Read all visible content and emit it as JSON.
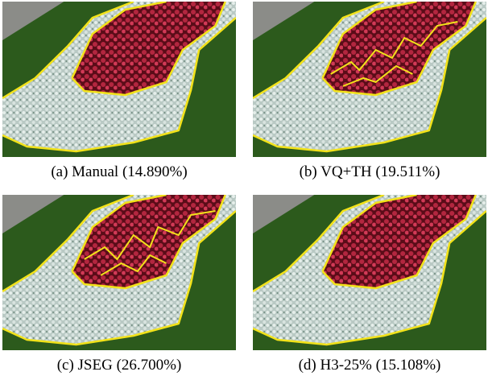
{
  "panels": [
    {
      "caption": "(a) Manual (14.890%)"
    },
    {
      "caption": "(b) VQ+TH (19.511%)"
    },
    {
      "caption": "(c) JSEG (26.700%)"
    },
    {
      "caption": "(d) H3-25% (15.108%)"
    }
  ]
}
